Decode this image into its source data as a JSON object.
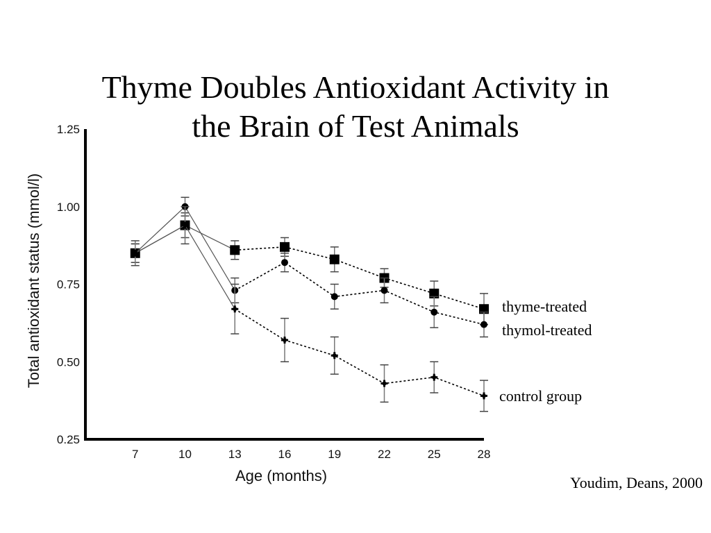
{
  "title_line1": "Thyme Doubles Antioxidant Activity in",
  "title_line2": "the Brain of Test Animals",
  "citation": "Youdim, Deans, 2000",
  "chart_data": {
    "type": "line",
    "title": "Thyme Doubles Antioxidant Activity in the Brain of Test Animals",
    "xlabel": "Age (months)",
    "ylabel": "Total antioxidant status (mmol/l)",
    "x": [
      7,
      10,
      13,
      16,
      19,
      22,
      25,
      28
    ],
    "x_tick_labels": [
      "7",
      "10",
      "13",
      "16",
      "19",
      "22",
      "25",
      "28"
    ],
    "ylim": [
      0.25,
      1.25
    ],
    "y_ticks": [
      0.25,
      0.5,
      0.75,
      1.0,
      1.25
    ],
    "y_tick_labels": [
      "0.25",
      "0.50",
      "0.75",
      "1.00",
      "1.25"
    ],
    "grid": false,
    "series": [
      {
        "name": "thyme-treated",
        "marker": "square",
        "values": [
          0.85,
          0.94,
          0.86,
          0.87,
          0.83,
          0.77,
          0.72,
          0.67
        ],
        "errors": [
          0.03,
          0.04,
          0.03,
          0.03,
          0.04,
          0.03,
          0.04,
          0.05
        ]
      },
      {
        "name": "thymol-treated",
        "marker": "circle",
        "values": [
          0.85,
          1.0,
          0.73,
          0.82,
          0.71,
          0.73,
          0.66,
          0.62
        ],
        "errors": [
          0.03,
          0.03,
          0.04,
          0.03,
          0.04,
          0.04,
          0.05,
          0.04
        ]
      },
      {
        "name": "control group",
        "marker": "cross",
        "values": [
          0.85,
          0.94,
          0.67,
          0.57,
          0.52,
          0.43,
          0.45,
          0.39
        ],
        "errors": [
          0.04,
          0.06,
          0.08,
          0.07,
          0.06,
          0.06,
          0.05,
          0.05
        ]
      }
    ]
  }
}
